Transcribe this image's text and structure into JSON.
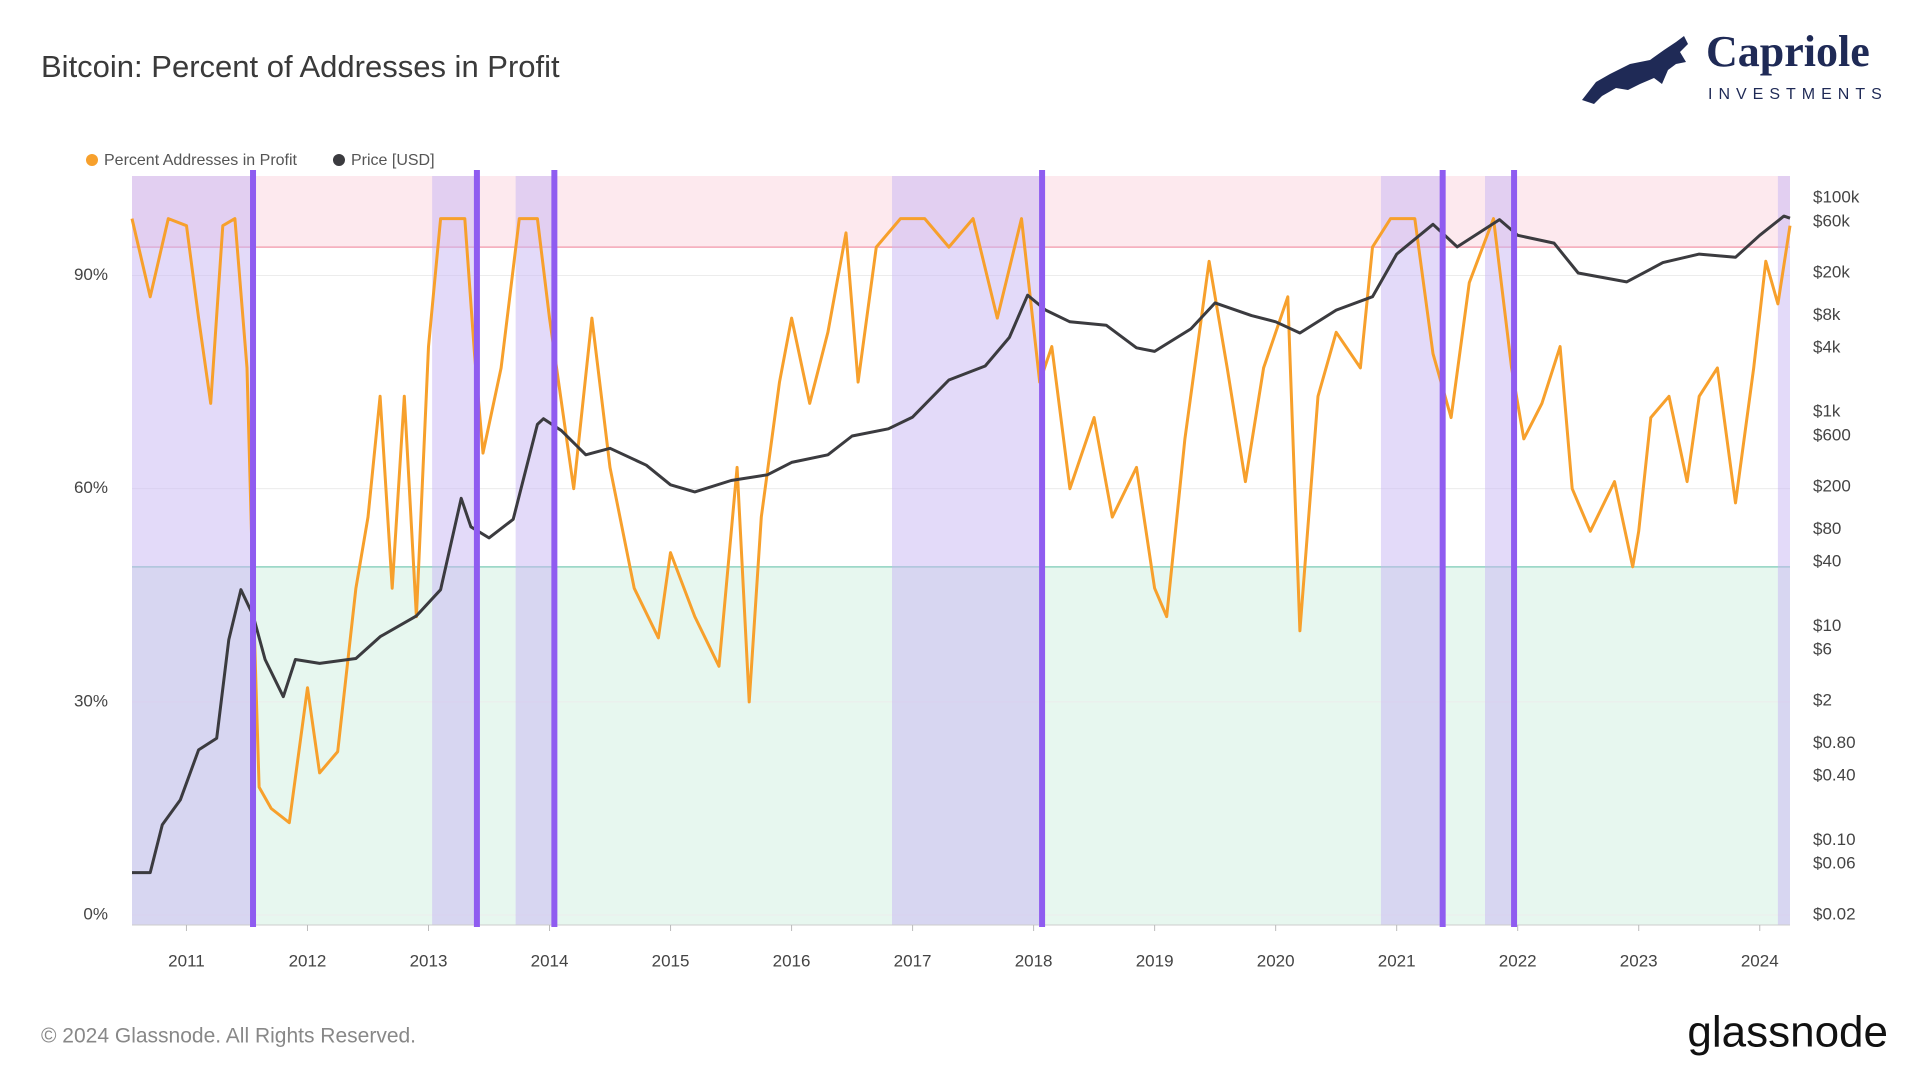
{
  "chart_data": {
    "type": "line",
    "title": "Bitcoin: Percent of Addresses in Profit",
    "xlim": [
      2010.55,
      2024.25
    ],
    "xticks": [
      2011,
      2012,
      2013,
      2014,
      2015,
      2016,
      2017,
      2018,
      2019,
      2020,
      2021,
      2022,
      2023,
      2024
    ],
    "ylim": [
      -1.4,
      104
    ],
    "yticks": [
      {
        "value": 0,
        "label": "0%"
      },
      {
        "value": 30,
        "label": "30%"
      },
      {
        "value": 60,
        "label": "60%"
      },
      {
        "value": 90,
        "label": "90%"
      }
    ],
    "y2lim": [
      0.0162,
      161000
    ],
    "y2scale": "log",
    "y2ticks": [
      {
        "value": 0.02,
        "label": "$0.02"
      },
      {
        "value": 0.06,
        "label": "$0.06"
      },
      {
        "value": 0.1,
        "label": "$0.10"
      },
      {
        "value": 0.4,
        "label": "$0.40"
      },
      {
        "value": 0.8,
        "label": "$0.80"
      },
      {
        "value": 2,
        "label": "$2"
      },
      {
        "value": 6,
        "label": "$6"
      },
      {
        "value": 10,
        "label": "$10"
      },
      {
        "value": 40,
        "label": "$40"
      },
      {
        "value": 80,
        "label": "$80"
      },
      {
        "value": 200,
        "label": "$200"
      },
      {
        "value": 600,
        "label": "$600"
      },
      {
        "value": 1000,
        "label": "$1k"
      },
      {
        "value": 4000,
        "label": "$4k"
      },
      {
        "value": 8000,
        "label": "$8k"
      },
      {
        "value": 20000,
        "label": "$20k"
      },
      {
        "value": 60000,
        "label": "$60k"
      },
      {
        "value": 100000,
        "label": "$100k"
      }
    ],
    "grid": true,
    "upper_band": {
      "from": 94,
      "color": "#fde9ee",
      "line_color": "#f4a6b6"
    },
    "lower_band": {
      "to": 49,
      "color": "#e7f7ef",
      "line_color": "#8fd3c0"
    },
    "highlight_ranges": [
      [
        2010.55,
        2011.55
      ],
      [
        2013.03,
        2013.4
      ],
      [
        2013.72,
        2014.04
      ],
      [
        2016.83,
        2018.07
      ],
      [
        2020.87,
        2021.38
      ],
      [
        2021.73,
        2021.97
      ],
      [
        2024.15,
        2024.25
      ]
    ],
    "highlight_color": "#c7b5f4",
    "markers": [
      2011.55,
      2013.4,
      2014.04,
      2018.07,
      2021.38,
      2021.97
    ],
    "marker_color": "#8f5cf0",
    "series": [
      {
        "name": "Percent Addresses in Profit",
        "color": "#f7a02c",
        "x": [
          2010.55,
          2010.7,
          2010.85,
          2011.0,
          2011.1,
          2011.2,
          2011.3,
          2011.4,
          2011.5,
          2011.55,
          2011.6,
          2011.7,
          2011.85,
          2012.0,
          2012.1,
          2012.25,
          2012.4,
          2012.5,
          2012.6,
          2012.7,
          2012.8,
          2012.9,
          2013.0,
          2013.1,
          2013.3,
          2013.38,
          2013.45,
          2013.6,
          2013.75,
          2013.9,
          2014.0,
          2014.1,
          2014.2,
          2014.35,
          2014.5,
          2014.7,
          2014.9,
          2015.0,
          2015.2,
          2015.4,
          2015.55,
          2015.65,
          2015.75,
          2015.9,
          2016.0,
          2016.15,
          2016.3,
          2016.45,
          2016.55,
          2016.7,
          2016.9,
          2017.1,
          2017.3,
          2017.5,
          2017.7,
          2017.9,
          2018.05,
          2018.15,
          2018.3,
          2018.5,
          2018.65,
          2018.85,
          2019.0,
          2019.1,
          2019.25,
          2019.45,
          2019.6,
          2019.75,
          2019.9,
          2020.1,
          2020.2,
          2020.35,
          2020.5,
          2020.7,
          2020.8,
          2020.95,
          2021.15,
          2021.3,
          2021.45,
          2021.6,
          2021.8,
          2021.95,
          2022.05,
          2022.2,
          2022.35,
          2022.45,
          2022.6,
          2022.8,
          2022.95,
          2023.0,
          2023.1,
          2023.25,
          2023.4,
          2023.5,
          2023.65,
          2023.8,
          2023.95,
          2024.05,
          2024.15,
          2024.25
        ],
        "values": [
          98,
          87,
          98,
          97,
          84,
          72,
          97,
          98,
          77,
          46,
          18,
          15,
          13,
          32,
          20,
          23,
          46,
          56,
          73,
          46,
          73,
          42,
          80,
          98,
          98,
          79,
          65,
          77,
          98,
          98,
          84,
          72,
          60,
          84,
          63,
          46,
          39,
          51,
          42,
          35,
          63,
          30,
          56,
          75,
          84,
          72,
          82,
          96,
          75,
          94,
          98,
          98,
          94,
          98,
          84,
          98,
          75,
          80,
          60,
          70,
          56,
          63,
          46,
          42,
          67,
          92,
          77,
          61,
          77,
          87,
          40,
          73,
          82,
          77,
          94,
          98,
          98,
          79,
          70,
          89,
          98,
          77,
          67,
          72,
          80,
          60,
          54,
          61,
          49,
          54,
          70,
          73,
          61,
          73,
          77,
          58,
          77,
          92,
          86,
          97
        ]
      },
      {
        "name": "Price [USD]",
        "color": "#3b3b3f",
        "axis": "y2",
        "x": [
          2010.55,
          2010.7,
          2010.8,
          2010.95,
          2011.1,
          2011.25,
          2011.35,
          2011.45,
          2011.55,
          2011.65,
          2011.8,
          2011.9,
          2012.1,
          2012.4,
          2012.6,
          2012.9,
          2013.1,
          2013.27,
          2013.35,
          2013.5,
          2013.7,
          2013.9,
          2013.95,
          2014.1,
          2014.3,
          2014.5,
          2014.8,
          2015.0,
          2015.2,
          2015.5,
          2015.8,
          2016.0,
          2016.3,
          2016.5,
          2016.8,
          2017.0,
          2017.3,
          2017.6,
          2017.8,
          2017.95,
          2018.1,
          2018.3,
          2018.6,
          2018.85,
          2019.0,
          2019.3,
          2019.5,
          2019.8,
          2020.0,
          2020.2,
          2020.5,
          2020.8,
          2021.0,
          2021.3,
          2021.5,
          2021.85,
          2022.0,
          2022.3,
          2022.5,
          2022.9,
          2023.2,
          2023.5,
          2023.8,
          2024.0,
          2024.2,
          2024.25
        ],
        "values": [
          0.05,
          0.05,
          0.14,
          0.24,
          0.7,
          0.9,
          7.5,
          22,
          12.7,
          4.9,
          2.2,
          4.9,
          4.5,
          5,
          8,
          12.5,
          22,
          157,
          85,
          67,
          100,
          770,
          870,
          670,
          400,
          460,
          320,
          210,
          180,
          230,
          260,
          340,
          400,
          600,
          700,
          900,
          2000,
          2700,
          5000,
          12400,
          9000,
          7000,
          6500,
          4000,
          3700,
          6000,
          10500,
          8000,
          7000,
          5500,
          9000,
          12000,
          30000,
          57000,
          35000,
          63000,
          45000,
          38000,
          20000,
          16500,
          25000,
          30000,
          28000,
          45000,
          68000,
          65000
        ]
      }
    ],
    "footer": "© 2024 Glassnode. All Rights Reserved.",
    "brand": {
      "name": "Capriole",
      "sub": "INVESTMENTS",
      "provider": "glassnode"
    }
  }
}
